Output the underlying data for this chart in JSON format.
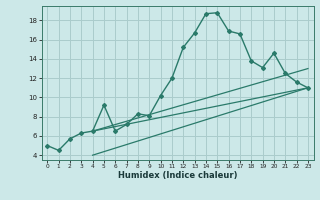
{
  "xlabel": "Humidex (Indice chaleur)",
  "bg_color": "#cce8e8",
  "grid_color": "#aacccc",
  "line_color": "#2a7a6a",
  "xlim": [
    -0.5,
    23.5
  ],
  "ylim": [
    3.5,
    19.5
  ],
  "xticks": [
    0,
    1,
    2,
    3,
    4,
    5,
    6,
    7,
    8,
    9,
    10,
    11,
    12,
    13,
    14,
    15,
    16,
    17,
    18,
    19,
    20,
    21,
    22,
    23
  ],
  "yticks": [
    4,
    6,
    8,
    10,
    12,
    14,
    16,
    18
  ],
  "main_series": {
    "x": [
      0,
      1,
      2,
      3,
      4,
      5,
      6,
      7,
      8,
      9,
      10,
      11,
      12,
      13,
      14,
      15,
      16,
      17,
      18,
      19,
      20,
      21,
      22,
      23
    ],
    "y": [
      5.0,
      4.5,
      5.7,
      6.3,
      6.5,
      9.2,
      6.5,
      7.2,
      8.3,
      8.1,
      10.2,
      12.0,
      15.2,
      16.7,
      18.7,
      18.8,
      16.9,
      16.6,
      13.8,
      13.1,
      14.6,
      12.5,
      11.6,
      11.0
    ]
  },
  "fan_lines": [
    {
      "x": [
        4,
        23
      ],
      "y": [
        6.5,
        11.0
      ]
    },
    {
      "x": [
        4,
        23
      ],
      "y": [
        6.5,
        13.0
      ]
    },
    {
      "x": [
        4,
        23
      ],
      "y": [
        4,
        11.0
      ]
    }
  ]
}
